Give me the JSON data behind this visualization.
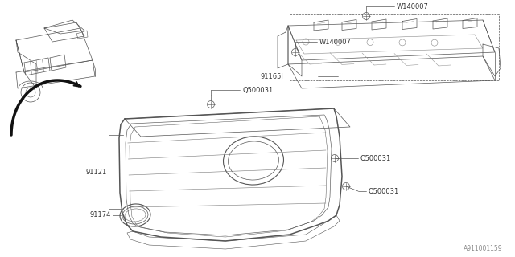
{
  "bg_color": "#ffffff",
  "line_color": "#555555",
  "text_color": "#333333",
  "fig_width": 6.4,
  "fig_height": 3.2,
  "dpi": 100,
  "watermark": "A911001159",
  "labels": {
    "W140007_top": "W140007",
    "W140007_mid": "W140007",
    "Q500031_a": "Q500031",
    "Q500031_b": "Q500031",
    "Q500031_c": "Q500031",
    "91165J": "91165J",
    "91121": "91121",
    "91174": "91174"
  }
}
